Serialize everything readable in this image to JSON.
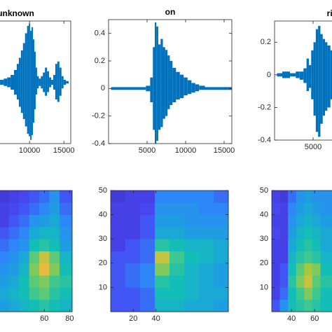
{
  "chart_data": [
    {
      "type": "waveform",
      "title": "unknown",
      "color": "#0072bd",
      "xlim": [
        0,
        16000
      ],
      "ylim": [
        -0.5,
        0.5
      ],
      "xticks": [
        10000,
        15000
      ],
      "yticks": [],
      "x": [
        5500,
        6000,
        6500,
        7000,
        7500,
        8000,
        8300,
        8600,
        8900,
        9200,
        9500,
        9800,
        10000,
        10200,
        10400,
        10600,
        10800,
        11000,
        11200,
        11500,
        11800,
        12100,
        12400,
        12700,
        13000,
        13300,
        13600,
        13900,
        14200,
        14500,
        14800,
        15100,
        15500
      ],
      "upper": [
        0.02,
        0.02,
        0.03,
        0.04,
        0.06,
        0.1,
        0.15,
        0.2,
        0.26,
        0.32,
        0.4,
        0.46,
        0.48,
        0.42,
        0.45,
        0.35,
        0.25,
        0.12,
        0.05,
        0.03,
        0.05,
        0.08,
        0.12,
        0.09,
        0.04,
        0.02,
        0.06,
        0.15,
        0.17,
        0.12,
        0.05,
        0.02,
        0.01
      ],
      "lower": [
        -0.02,
        -0.02,
        -0.03,
        -0.04,
        -0.06,
        -0.1,
        -0.14,
        -0.2,
        -0.25,
        -0.3,
        -0.36,
        -0.42,
        -0.44,
        -0.47,
        -0.43,
        -0.33,
        -0.22,
        -0.1,
        -0.05,
        -0.03,
        -0.05,
        -0.08,
        -0.11,
        -0.08,
        -0.04,
        -0.02,
        -0.06,
        -0.14,
        -0.16,
        -0.11,
        -0.05,
        -0.02,
        -0.01
      ]
    },
    {
      "type": "waveform",
      "title": "on",
      "color": "#0072bd",
      "xlim": [
        0,
        16000
      ],
      "ylim": [
        -0.4,
        0.5
      ],
      "xticks": [
        5000,
        10000,
        15000
      ],
      "yticks": [
        -0.4,
        -0.2,
        0,
        0.2,
        0.4
      ],
      "x": [
        500,
        1500,
        2500,
        3500,
        4500,
        5200,
        5600,
        5900,
        6100,
        6300,
        6600,
        6900,
        7200,
        7500,
        7800,
        8100,
        8500,
        9000,
        9500,
        10000,
        10500,
        11000,
        11500,
        12000,
        13000,
        14000,
        15000,
        15800
      ],
      "upper": [
        0.01,
        0.01,
        0.01,
        0.01,
        0.01,
        0.02,
        0.08,
        0.3,
        0.48,
        0.45,
        0.32,
        0.36,
        0.3,
        0.28,
        0.24,
        0.2,
        0.15,
        0.12,
        0.1,
        0.08,
        0.06,
        0.04,
        0.03,
        0.02,
        0.01,
        0.01,
        0.01,
        0.01
      ],
      "lower": [
        -0.01,
        -0.01,
        -0.01,
        -0.01,
        -0.01,
        -0.02,
        -0.1,
        -0.3,
        -0.4,
        -0.38,
        -0.3,
        -0.28,
        -0.22,
        -0.2,
        -0.15,
        -0.12,
        -0.1,
        -0.08,
        -0.07,
        -0.05,
        -0.04,
        -0.03,
        -0.02,
        -0.01,
        -0.01,
        -0.01,
        -0.01,
        -0.01
      ]
    },
    {
      "type": "waveform",
      "title": "right",
      "color": "#0072bd",
      "xlim": [
        0,
        16000
      ],
      "ylim": [
        -0.4,
        0.33
      ],
      "xticks": [
        5000
      ],
      "yticks": [
        -0.4,
        -0.2,
        0,
        0.2
      ],
      "x": [
        500,
        1500,
        2500,
        3000,
        3500,
        4000,
        4300,
        4600,
        4900,
        5200,
        5500,
        5800,
        6100,
        6400,
        6700,
        7000,
        7500
      ],
      "upper": [
        0.01,
        0.02,
        0.01,
        0.02,
        0.02,
        0.04,
        0.1,
        0.06,
        0.15,
        0.2,
        0.28,
        0.3,
        0.25,
        0.22,
        0.2,
        0.18,
        0.15
      ],
      "lower": [
        -0.01,
        -0.02,
        -0.01,
        -0.02,
        -0.03,
        -0.05,
        -0.1,
        -0.08,
        -0.15,
        -0.25,
        -0.35,
        -0.38,
        -0.3,
        -0.25,
        -0.22,
        -0.2,
        -0.15
      ]
    },
    {
      "type": "heatmap",
      "xlim": [
        0,
        82
      ],
      "ylim": [
        0,
        50
      ],
      "xticks": [
        60,
        80
      ],
      "yticks": [],
      "clim": [
        0,
        1
      ],
      "colormap": [
        "#3e26a8",
        "#4748f5",
        "#2e87f7",
        "#1aa4db",
        "#13beb7",
        "#48cb86",
        "#a5c840",
        "#f6ba3d",
        "#f9fb0e"
      ],
      "xbins": [
        24,
        32,
        40,
        48,
        56,
        64,
        72,
        82
      ],
      "ybins": [
        0,
        5,
        10,
        15,
        20,
        25,
        30,
        35,
        40,
        45,
        50
      ],
      "z": [
        [
          0.35,
          0.4,
          0.45,
          0.5,
          0.55,
          0.5,
          0.45
        ],
        [
          0.4,
          0.45,
          0.5,
          0.6,
          0.65,
          0.55,
          0.5
        ],
        [
          0.35,
          0.4,
          0.5,
          0.65,
          0.7,
          0.6,
          0.55
        ],
        [
          0.3,
          0.35,
          0.45,
          0.7,
          0.85,
          0.7,
          0.5
        ],
        [
          0.25,
          0.3,
          0.4,
          0.65,
          0.8,
          0.65,
          0.45
        ],
        [
          0.2,
          0.25,
          0.3,
          0.5,
          0.55,
          0.5,
          0.35
        ],
        [
          0.15,
          0.2,
          0.25,
          0.4,
          0.45,
          0.45,
          0.3
        ],
        [
          0.1,
          0.15,
          0.2,
          0.3,
          0.35,
          0.4,
          0.25
        ],
        [
          0.1,
          0.12,
          0.15,
          0.2,
          0.25,
          0.35,
          0.2
        ],
        [
          0.08,
          0.1,
          0.12,
          0.15,
          0.2,
          0.3,
          0.15
        ]
      ]
    },
    {
      "type": "heatmap",
      "xlim": [
        0,
        104
      ],
      "ylim": [
        0,
        50
      ],
      "xticks": [
        20,
        40
      ],
      "yticks": [
        10,
        20,
        30,
        40,
        50
      ],
      "clim": [
        0,
        1
      ],
      "colormap": [
        "#3e26a8",
        "#4748f5",
        "#2e87f7",
        "#1aa4db",
        "#13beb7",
        "#48cb86",
        "#a5c840",
        "#f6ba3d",
        "#f9fb0e"
      ],
      "xbins": [
        0,
        13,
        26,
        39,
        52,
        65,
        78,
        91,
        104
      ],
      "ybins": [
        0,
        5,
        10,
        15,
        20,
        25,
        30,
        35,
        40,
        45,
        50
      ],
      "z": [
        [
          0.15,
          0.15,
          0.2,
          0.45,
          0.45,
          0.4,
          0.4,
          0.35
        ],
        [
          0.15,
          0.15,
          0.2,
          0.5,
          0.5,
          0.45,
          0.4,
          0.4
        ],
        [
          0.15,
          0.2,
          0.25,
          0.55,
          0.5,
          0.45,
          0.4,
          0.35
        ],
        [
          0.15,
          0.2,
          0.25,
          0.7,
          0.55,
          0.45,
          0.4,
          0.35
        ],
        [
          0.15,
          0.15,
          0.2,
          0.8,
          0.6,
          0.5,
          0.45,
          0.4
        ],
        [
          0.1,
          0.15,
          0.2,
          0.55,
          0.5,
          0.45,
          0.45,
          0.4
        ],
        [
          0.1,
          0.1,
          0.15,
          0.4,
          0.4,
          0.35,
          0.35,
          0.35
        ],
        [
          0.1,
          0.1,
          0.15,
          0.35,
          0.35,
          0.3,
          0.3,
          0.3
        ],
        [
          0.1,
          0.1,
          0.12,
          0.3,
          0.3,
          0.3,
          0.25,
          0.25
        ],
        [
          0.08,
          0.1,
          0.1,
          0.25,
          0.25,
          0.25,
          0.25,
          0.2
        ]
      ]
    },
    {
      "type": "heatmap",
      "xlim": [
        23,
        104
      ],
      "ylim": [
        0,
        50
      ],
      "xticks": [
        40,
        60
      ],
      "yticks": [
        10,
        20,
        30,
        40,
        50
      ],
      "clim": [
        0,
        1
      ],
      "colormap": [
        "#3e26a8",
        "#4748f5",
        "#2e87f7",
        "#1aa4db",
        "#13beb7",
        "#48cb86",
        "#a5c840",
        "#f6ba3d",
        "#f9fb0e"
      ],
      "xbins": [
        23,
        30,
        37,
        44,
        51,
        58,
        65,
        75
      ],
      "ybins": [
        0,
        5,
        10,
        15,
        20,
        25,
        30,
        35,
        40,
        45,
        50
      ],
      "z": [
        [
          0.15,
          0.3,
          0.5,
          0.55,
          0.6,
          0.55,
          0.5
        ],
        [
          0.1,
          0.2,
          0.5,
          0.6,
          0.7,
          0.6,
          0.5
        ],
        [
          0.1,
          0.15,
          0.55,
          0.7,
          0.8,
          0.65,
          0.55
        ],
        [
          0.1,
          0.15,
          0.5,
          0.65,
          0.75,
          0.7,
          0.5
        ],
        [
          0.1,
          0.1,
          0.45,
          0.55,
          0.6,
          0.55,
          0.45
        ],
        [
          0.1,
          0.1,
          0.4,
          0.5,
          0.55,
          0.5,
          0.4
        ],
        [
          0.12,
          0.1,
          0.35,
          0.45,
          0.5,
          0.45,
          0.4
        ],
        [
          0.1,
          0.1,
          0.3,
          0.4,
          0.45,
          0.4,
          0.35
        ],
        [
          0.12,
          0.1,
          0.25,
          0.35,
          0.4,
          0.35,
          0.3
        ],
        [
          0.1,
          0.08,
          0.2,
          0.3,
          0.35,
          0.3,
          0.3
        ]
      ]
    }
  ]
}
